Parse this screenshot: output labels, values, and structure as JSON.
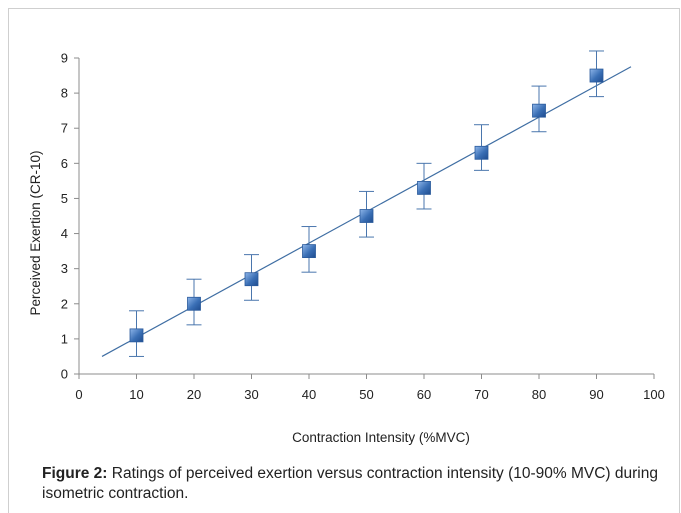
{
  "chart_data": {
    "type": "scatter",
    "xlabel": "Contraction Intensity (%MVC)",
    "ylabel": "Perceived Exertion (CR-10)",
    "xlim": [
      0,
      100
    ],
    "ylim": [
      0,
      9
    ],
    "xticks": [
      0,
      10,
      20,
      30,
      40,
      50,
      60,
      70,
      80,
      90,
      100
    ],
    "yticks": [
      0,
      1,
      2,
      3,
      4,
      5,
      6,
      7,
      8,
      9
    ],
    "grid": false,
    "legend": "none",
    "series": [
      {
        "x": [
          10,
          20,
          30,
          40,
          50,
          60,
          70,
          80,
          90
        ],
        "y": [
          1.1,
          2.0,
          2.7,
          3.5,
          4.5,
          5.3,
          6.3,
          7.5,
          8.5
        ],
        "error_upper": [
          1.8,
          2.7,
          3.4,
          4.2,
          5.2,
          6.0,
          7.1,
          8.2,
          9.2
        ],
        "error_lower": [
          0.5,
          1.4,
          2.1,
          2.9,
          3.9,
          4.7,
          5.8,
          6.9,
          7.9
        ],
        "marker": "square",
        "color": "#3a6fb5"
      }
    ],
    "trendline": {
      "type": "linear",
      "x": [
        4,
        96
      ],
      "y": [
        0.5,
        8.75
      ],
      "color": "#3f6ea3"
    }
  },
  "caption": {
    "lead": "Figure 2:",
    "text": " Ratings of perceived exertion versus contraction intensity (10-90% MVC) during isometric contraction."
  }
}
